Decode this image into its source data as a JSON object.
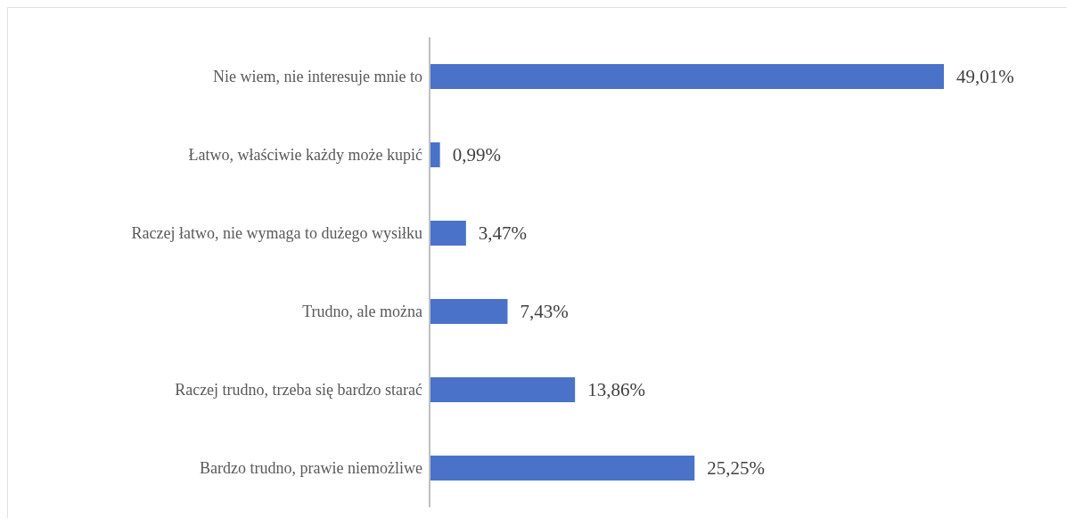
{
  "chart_data": {
    "type": "bar",
    "orientation": "horizontal",
    "categories": [
      "Nie wiem, nie interesuje mnie to",
      "Łatwo, właściwie każdy może kupić",
      "Raczej łatwo, nie wymaga to dużego wysiłku",
      "Trudno, ale można",
      "Raczej trudno, trzeba się bardzo starać",
      "Bardzo trudno, prawie niemożliwe"
    ],
    "values": [
      49.01,
      0.99,
      3.47,
      7.43,
      13.86,
      25.25
    ],
    "value_labels": [
      "49,01%",
      "0,99%",
      "3,47%",
      "7,43%",
      "13,86%",
      "25,25%"
    ],
    "color": "#4a72c8"
  }
}
